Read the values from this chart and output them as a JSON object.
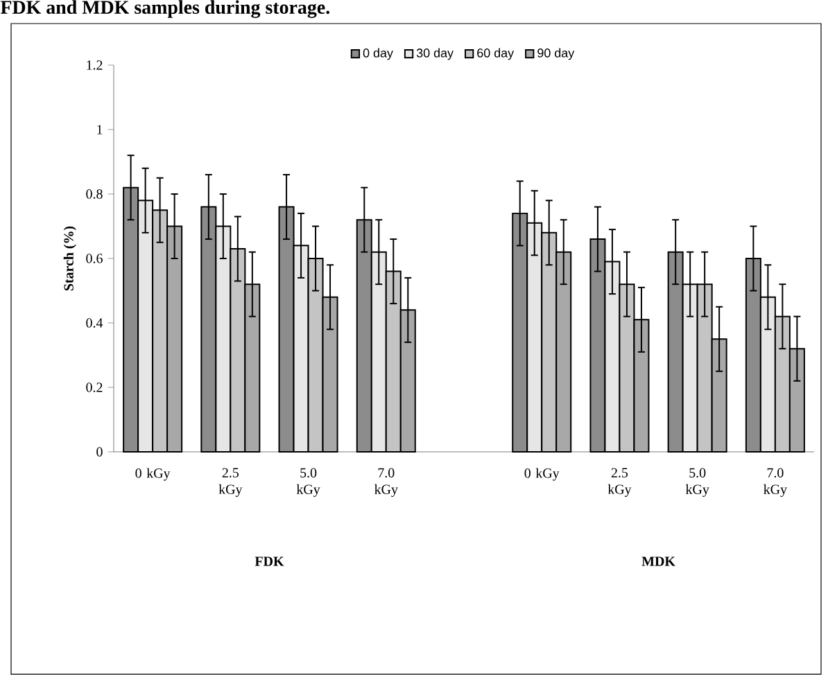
{
  "chart_data": {
    "type": "bar",
    "ylabel": "Starch (%)",
    "categories": [
      "0 kGy",
      "2.5 kGy",
      "5.0 kGy",
      "7.0 kGy",
      null,
      "0 kGy",
      "2.5 kGy",
      "5.0 kGy",
      "7.0 kGy"
    ],
    "series": [
      {
        "name": "0 day",
        "color": "#8c8c8c",
        "values": [
          0.82,
          0.76,
          0.76,
          0.72,
          null,
          0.74,
          0.66,
          0.62,
          0.6
        ],
        "errors": [
          0.1,
          0.1,
          0.1,
          0.1,
          null,
          0.1,
          0.1,
          0.1,
          0.1
        ]
      },
      {
        "name": "30 day",
        "color": "#e6e6e6",
        "values": [
          0.78,
          0.7,
          0.64,
          0.62,
          null,
          0.71,
          0.59,
          0.52,
          0.48
        ],
        "errors": [
          0.1,
          0.1,
          0.1,
          0.1,
          null,
          0.1,
          0.1,
          0.1,
          0.1
        ]
      },
      {
        "name": "60 day",
        "color": "#c4c4c4",
        "values": [
          0.75,
          0.63,
          0.6,
          0.56,
          null,
          0.68,
          0.52,
          0.52,
          0.42
        ],
        "errors": [
          0.1,
          0.1,
          0.1,
          0.1,
          null,
          0.1,
          0.1,
          0.1,
          0.1
        ]
      },
      {
        "name": "90 day",
        "color": "#a8a8a8",
        "values": [
          0.7,
          0.52,
          0.48,
          0.44,
          null,
          0.62,
          0.41,
          0.35,
          0.32
        ],
        "errors": [
          0.1,
          0.1,
          0.1,
          0.1,
          null,
          0.1,
          0.1,
          0.1,
          0.1
        ]
      }
    ],
    "ylim": [
      0,
      1.2
    ],
    "yticks": [
      0,
      0.2,
      0.4,
      0.6,
      0.8,
      1,
      1.2
    ],
    "grid": false,
    "legend": "top",
    "annotations": [
      "FDK and MDK samples during storage.",
      "FDK",
      "MDK"
    ]
  }
}
